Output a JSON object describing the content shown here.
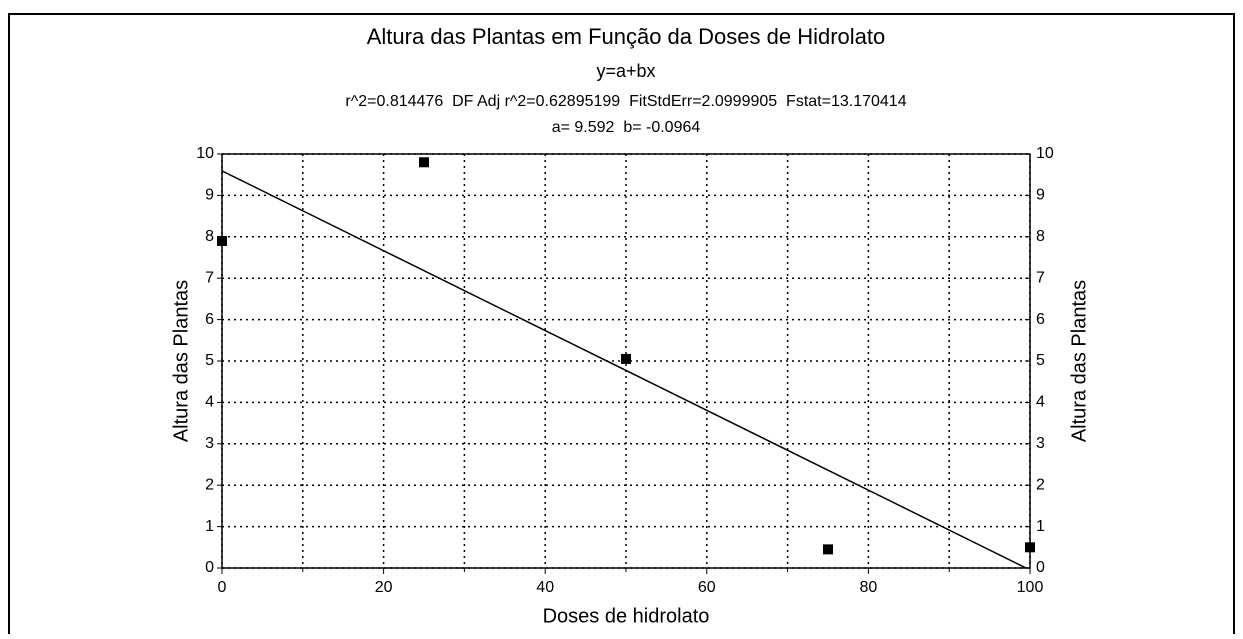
{
  "chart_data": {
    "type": "scatter",
    "title": "Altura das Plantas em Função da Doses de Hidrolato",
    "subtitle": "y=a+bx",
    "stats": "r^2=0.814476  DF Adj r^2=0.62895199  FitStdErr=2.0999905  Fstat=13.170414",
    "coefficients": "a= 9.592  b= -0.0964",
    "fit": {
      "a": 9.592,
      "b": -0.0964
    },
    "x_label": "Doses de hidrolato",
    "y_label": "Altura das Plantas",
    "y2_label": "Altura das Plantas",
    "x": [
      0,
      25,
      50,
      75,
      100
    ],
    "values": [
      7.9,
      9.8,
      5.05,
      0.45,
      0.5
    ],
    "color": "#000000",
    "xlim": [
      0,
      100
    ],
    "xticks": [
      0,
      20,
      40,
      60,
      80,
      100
    ],
    "xminor": [
      10,
      30,
      50,
      70,
      90
    ],
    "ylim": [
      0,
      10
    ],
    "yticks": [
      0,
      1,
      2,
      3,
      4,
      5,
      6,
      7,
      8,
      9,
      10
    ],
    "y2lim": [
      0,
      10
    ],
    "y2ticks": [
      0,
      1,
      2,
      3,
      4,
      5,
      6,
      7,
      8,
      9,
      10
    ],
    "grid": true
  }
}
